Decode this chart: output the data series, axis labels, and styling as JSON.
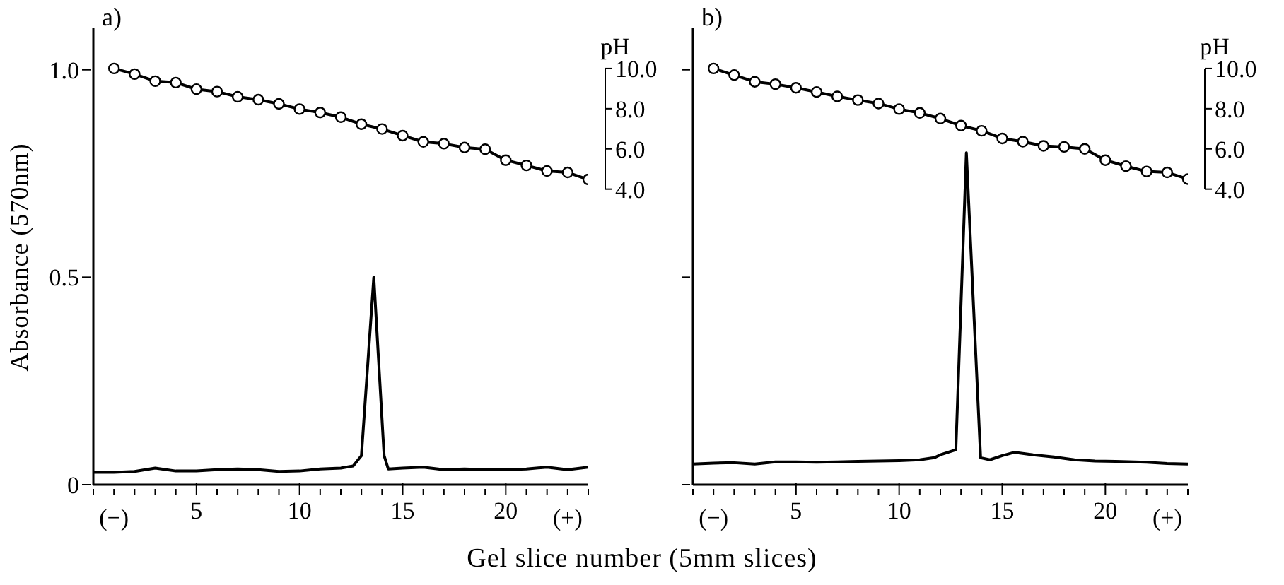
{
  "chart_data": [
    {
      "type": "line",
      "title": "a)",
      "ylabel": "Absorbance (570nm)",
      "y2label": "pH",
      "xlabel": "Gel slice number (5mm slices)",
      "xlim": [
        0,
        24
      ],
      "xticks": [
        {
          "value": 0,
          "label": null
        },
        {
          "value": 1,
          "label": "(−)"
        },
        {
          "value": 2,
          "label": null
        },
        {
          "value": 3,
          "label": null
        },
        {
          "value": 4,
          "label": null
        },
        5,
        {
          "value": 6,
          "label": null
        },
        {
          "value": 7,
          "label": null
        },
        {
          "value": 8,
          "label": null
        },
        {
          "value": 9,
          "label": null
        },
        10,
        {
          "value": 11,
          "label": null
        },
        {
          "value": 12,
          "label": null
        },
        {
          "value": 13,
          "label": null
        },
        {
          "value": 14,
          "label": null
        },
        15,
        {
          "value": 16,
          "label": null
        },
        {
          "value": 17,
          "label": null
        },
        {
          "value": 18,
          "label": null
        },
        {
          "value": 19,
          "label": null
        },
        20,
        {
          "value": 21,
          "label": null
        },
        {
          "value": 22,
          "label": null
        },
        {
          "value": 23,
          "label": "(+)"
        },
        {
          "value": 24,
          "label": null
        }
      ],
      "ylim": [
        0,
        1.1
      ],
      "yticks": [
        0,
        0.5,
        {
          "value": 1,
          "label": "1.0"
        }
      ],
      "y2lim": [
        -10.7,
        12
      ],
      "y2ticks": [
        {
          "value": 4,
          "label": "4.0"
        },
        {
          "value": 6,
          "label": "6.0"
        },
        {
          "value": 8,
          "label": "8.0"
        },
        {
          "value": 10,
          "label": "10.0"
        }
      ],
      "series": [
        {
          "type": "line",
          "color": "#000000",
          "marker": "none",
          "x": [
            0,
            1,
            2,
            3,
            4,
            5,
            6,
            7,
            8,
            9,
            10,
            11,
            12,
            12.6,
            13,
            13.6,
            14.1,
            14.3,
            15,
            16,
            17,
            18,
            19,
            20,
            21,
            22,
            23,
            24
          ],
          "values": [
            0.03,
            0.03,
            0.032,
            0.04,
            0.033,
            0.033,
            0.036,
            0.038,
            0.036,
            0.032,
            0.033,
            0.038,
            0.04,
            0.045,
            0.07,
            0.5,
            0.07,
            0.038,
            0.04,
            0.042,
            0.036,
            0.038,
            0.036,
            0.036,
            0.038,
            0.042,
            0.036,
            0.042
          ]
        },
        {
          "type": "line",
          "axis": "y2",
          "color": "#000000",
          "marker": "circle",
          "x": [
            1,
            2,
            3,
            4,
            5,
            6,
            7,
            8,
            9,
            10,
            11,
            12,
            13,
            14,
            15,
            16,
            17,
            18,
            19,
            20,
            21,
            22,
            23,
            24
          ],
          "values": [
            10.0,
            9.72,
            9.37,
            9.3,
            8.97,
            8.85,
            8.59,
            8.45,
            8.24,
            7.98,
            7.81,
            7.58,
            7.23,
            6.99,
            6.66,
            6.35,
            6.26,
            6.07,
            5.98,
            5.44,
            5.18,
            4.9,
            4.83,
            4.48
          ]
        }
      ]
    },
    {
      "type": "line",
      "title": "b)",
      "y2label": "pH",
      "xlim": [
        0,
        24
      ],
      "xticks": [
        {
          "value": 0,
          "label": null
        },
        {
          "value": 1,
          "label": "(−)"
        },
        {
          "value": 2,
          "label": null
        },
        {
          "value": 3,
          "label": null
        },
        {
          "value": 4,
          "label": null
        },
        5,
        {
          "value": 6,
          "label": null
        },
        {
          "value": 7,
          "label": null
        },
        {
          "value": 8,
          "label": null
        },
        {
          "value": 9,
          "label": null
        },
        10,
        {
          "value": 11,
          "label": null
        },
        {
          "value": 12,
          "label": null
        },
        {
          "value": 13,
          "label": null
        },
        {
          "value": 14,
          "label": null
        },
        15,
        {
          "value": 16,
          "label": null
        },
        {
          "value": 17,
          "label": null
        },
        {
          "value": 18,
          "label": null
        },
        {
          "value": 19,
          "label": null
        },
        20,
        {
          "value": 21,
          "label": null
        },
        {
          "value": 22,
          "label": null
        },
        {
          "value": 23,
          "label": "(+)"
        },
        {
          "value": 24,
          "label": null
        }
      ],
      "ylim": [
        0,
        1.1
      ],
      "yticks": [
        0,
        0.5,
        1
      ],
      "tick_labels": "x",
      "y2lim": [
        -10.7,
        12
      ],
      "y2ticks": [
        {
          "value": 4,
          "label": "4.0"
        },
        {
          "value": 6,
          "label": "6.0"
        },
        {
          "value": 8,
          "label": "8.0"
        },
        {
          "value": 10,
          "label": "10.0"
        }
      ],
      "series": [
        {
          "type": "line",
          "color": "#000000",
          "marker": "none",
          "x": [
            0,
            1,
            2,
            3,
            4,
            5,
            6,
            7,
            8,
            9,
            10,
            11,
            11.7,
            12,
            12.75,
            13.26,
            13.95,
            14.4,
            15,
            15.6,
            16.5,
            17.5,
            18.5,
            19.5,
            20.5,
            22,
            23,
            24
          ],
          "values": [
            0.05,
            0.052,
            0.053,
            0.05,
            0.055,
            0.055,
            0.054,
            0.055,
            0.056,
            0.057,
            0.058,
            0.06,
            0.065,
            0.072,
            0.084,
            0.8,
            0.065,
            0.06,
            0.07,
            0.078,
            0.072,
            0.067,
            0.06,
            0.057,
            0.056,
            0.054,
            0.051,
            0.05
          ]
        },
        {
          "type": "line",
          "axis": "y2",
          "color": "#000000",
          "marker": "circle",
          "x": [
            1,
            2,
            3,
            4,
            5,
            6,
            7,
            8,
            9,
            10,
            11,
            12,
            13,
            14,
            15,
            16,
            17,
            18,
            19,
            20,
            21,
            22,
            23,
            24
          ],
          "values": [
            10.0,
            9.67,
            9.34,
            9.22,
            9.04,
            8.83,
            8.61,
            8.43,
            8.26,
            7.98,
            7.79,
            7.51,
            7.16,
            6.9,
            6.52,
            6.36,
            6.15,
            6.1,
            6.0,
            5.44,
            5.14,
            4.88,
            4.83,
            4.5
          ]
        }
      ]
    }
  ]
}
